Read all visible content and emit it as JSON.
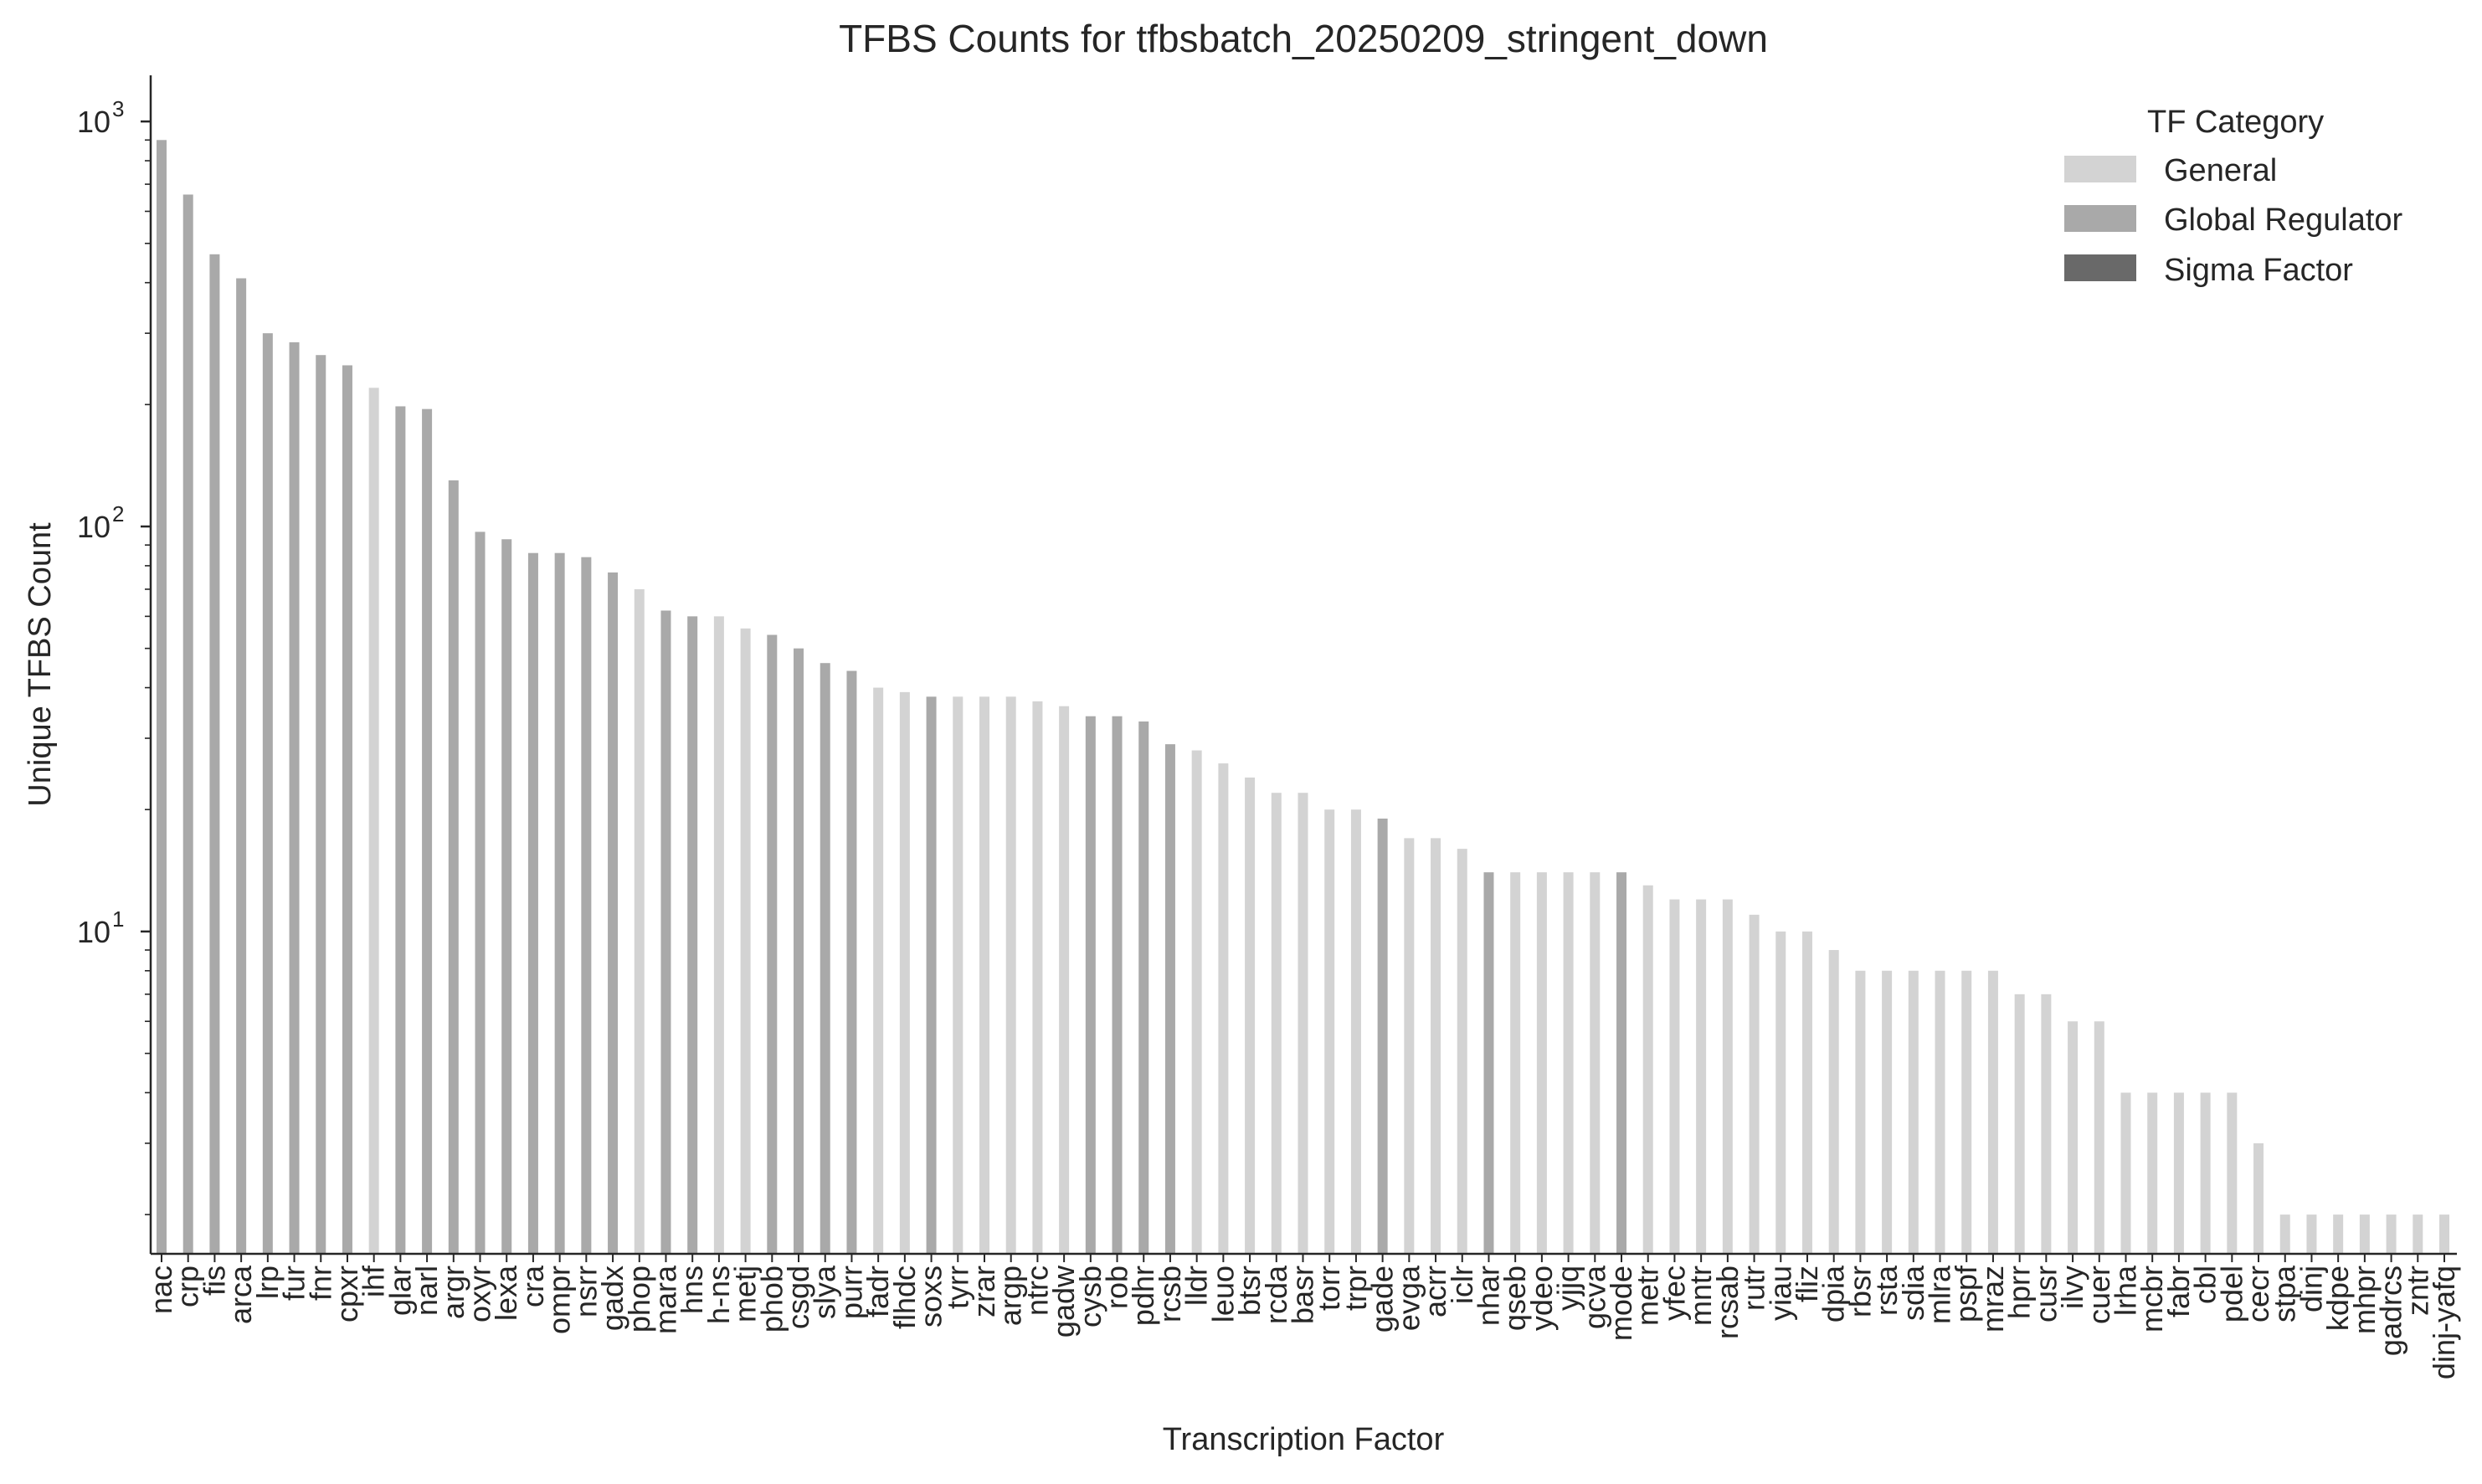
{
  "chart_data": {
    "type": "bar",
    "title": "TFBS Counts for tfbsbatch_20250209_stringent_down",
    "xlabel": "Transcription Factor",
    "ylabel": "Unique TFBS Count",
    "yscale": "log",
    "ylim": [
      1.6,
      1300
    ],
    "yticks": [
      {
        "base": "10",
        "exp": "1",
        "value": 10
      },
      {
        "base": "10",
        "exp": "2",
        "value": 100
      },
      {
        "base": "10",
        "exp": "3",
        "value": 1000
      }
    ],
    "legend": {
      "title": "TF Category",
      "placement": "top-right",
      "entries": [
        {
          "label": "General",
          "color": "#d3d3d3"
        },
        {
          "label": "Global Regulator",
          "color": "#a9a9a9"
        },
        {
          "label": "Sigma Factor",
          "color": "#696969"
        }
      ]
    },
    "colors": {
      "General": "#d3d3d3",
      "Global Regulator": "#a9a9a9",
      "Sigma Factor": "#696969"
    },
    "categories": [
      "nac",
      "crp",
      "fis",
      "arca",
      "lrp",
      "fur",
      "fnr",
      "cpxr",
      "ihf",
      "glar",
      "narl",
      "argr",
      "oxyr",
      "lexa",
      "cra",
      "ompr",
      "nsrr",
      "gadx",
      "phop",
      "mara",
      "hns",
      "h-ns",
      "metj",
      "phob",
      "csgd",
      "slya",
      "purr",
      "fadr",
      "flhdc",
      "soxs",
      "tyrr",
      "zrar",
      "argp",
      "ntrc",
      "gadw",
      "cysb",
      "rob",
      "pdhr",
      "rcsb",
      "lldr",
      "leuo",
      "btsr",
      "rcda",
      "basr",
      "torr",
      "trpr",
      "gade",
      "evga",
      "acrr",
      "iclr",
      "nhar",
      "qseb",
      "ydeo",
      "yjjq",
      "gcva",
      "mode",
      "metr",
      "yfec",
      "mntr",
      "rcsab",
      "rutr",
      "yiau",
      "fliz",
      "dpia",
      "rbsr",
      "rsta",
      "sdia",
      "mlra",
      "pspf",
      "mraz",
      "hprr",
      "cusr",
      "ilvy",
      "cuer",
      "lrha",
      "mcbr",
      "fabr",
      "cbl",
      "pdel",
      "cecr",
      "stpa",
      "dinj",
      "kdpe",
      "mhpr",
      "gadrcs",
      "zntr",
      "dinj-yafq"
    ],
    "values": [
      900,
      660,
      470,
      410,
      300,
      285,
      265,
      250,
      220,
      198,
      195,
      130,
      97,
      93,
      86,
      86,
      84,
      77,
      70,
      62,
      60,
      60,
      56,
      54,
      50,
      46,
      44,
      40,
      39,
      38,
      38,
      38,
      38,
      37,
      36,
      34,
      34,
      33,
      29,
      28,
      26,
      24,
      22,
      22,
      20,
      20,
      19,
      17,
      17,
      16,
      14,
      14,
      14,
      14,
      14,
      14,
      13,
      12,
      12,
      12,
      11,
      10,
      10,
      9,
      8,
      8,
      8,
      8,
      8,
      8,
      7,
      7,
      6,
      6,
      4,
      4,
      4,
      4,
      4,
      3,
      2,
      2,
      2,
      2,
      2,
      2,
      2
    ],
    "bar_categories": [
      "Global Regulator",
      "Global Regulator",
      "Global Regulator",
      "Global Regulator",
      "Global Regulator",
      "Global Regulator",
      "Global Regulator",
      "Global Regulator",
      "General",
      "Global Regulator",
      "Global Regulator",
      "Global Regulator",
      "Global Regulator",
      "Global Regulator",
      "Global Regulator",
      "Global Regulator",
      "Global Regulator",
      "Global Regulator",
      "General",
      "Global Regulator",
      "Global Regulator",
      "General",
      "General",
      "Global Regulator",
      "Global Regulator",
      "Global Regulator",
      "Global Regulator",
      "General",
      "General",
      "Global Regulator",
      "General",
      "General",
      "General",
      "General",
      "General",
      "Global Regulator",
      "Global Regulator",
      "Global Regulator",
      "Global Regulator",
      "General",
      "General",
      "General",
      "General",
      "General",
      "General",
      "General",
      "Global Regulator",
      "General",
      "General",
      "General",
      "Global Regulator",
      "General",
      "General",
      "General",
      "General",
      "Global Regulator",
      "General",
      "General",
      "General",
      "General",
      "General",
      "General",
      "General",
      "General",
      "General",
      "General",
      "General",
      "General",
      "General",
      "General",
      "General",
      "General",
      "General",
      "General",
      "General",
      "General",
      "General",
      "General",
      "General",
      "General",
      "General",
      "General",
      "General",
      "General",
      "General",
      "General",
      "General"
    ]
  }
}
